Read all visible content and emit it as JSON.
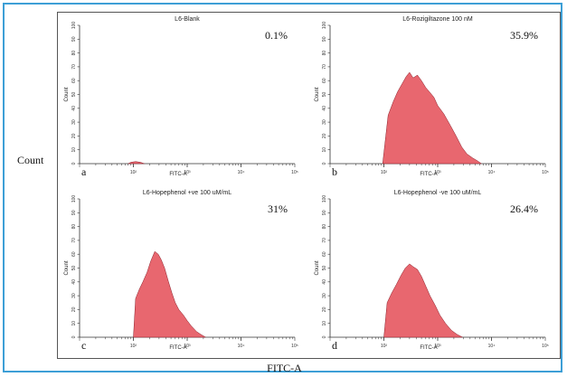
{
  "figure": {
    "y_label": "Count",
    "x_label": "FITC-A"
  },
  "chart_data": [
    {
      "type": "area",
      "panel_letter": "a",
      "title": "L6-Blank",
      "percent": "0.1%",
      "xlabel": "FITC-A",
      "ylabel": "Count",
      "xscale": "log",
      "xlim": [
        10,
        100000
      ],
      "ylim": [
        0,
        100
      ],
      "yticks": [
        0,
        10,
        20,
        30,
        40,
        50,
        60,
        70,
        80,
        90,
        100
      ],
      "xticks": [
        {
          "v": 100,
          "label": "10²"
        },
        {
          "v": 1000,
          "label": "10³"
        },
        {
          "v": 10000,
          "label": "10⁴"
        },
        {
          "v": 100000,
          "label": "10⁵"
        }
      ],
      "color": "#e8676f",
      "x": [
        80,
        90,
        110,
        135,
        160
      ],
      "y": [
        0,
        1,
        1.5,
        1,
        0
      ]
    },
    {
      "type": "area",
      "panel_letter": "b",
      "title": "L6-Rozigiltazone 100 nM",
      "percent": "35.9%",
      "xlabel": "FITC-A",
      "ylabel": "Count",
      "xscale": "log",
      "xlim": [
        10,
        100000
      ],
      "ylim": [
        0,
        100
      ],
      "yticks": [
        0,
        10,
        20,
        30,
        40,
        50,
        60,
        70,
        80,
        90,
        100
      ],
      "xticks": [
        {
          "v": 100,
          "label": "10²"
        },
        {
          "v": 1000,
          "label": "10³"
        },
        {
          "v": 10000,
          "label": "10⁴"
        },
        {
          "v": 100000,
          "label": "10⁵"
        }
      ],
      "color": "#e8676f",
      "x": [
        95,
        120,
        150,
        180,
        220,
        260,
        300,
        350,
        420,
        500,
        600,
        700,
        850,
        1000,
        1300,
        1700,
        2200,
        2800,
        3500,
        4500,
        5500,
        6500
      ],
      "y": [
        0,
        35,
        45,
        52,
        58,
        63,
        66,
        62,
        64,
        60,
        55,
        52,
        48,
        42,
        36,
        28,
        20,
        12,
        7,
        4,
        2,
        0
      ]
    },
    {
      "type": "area",
      "panel_letter": "c",
      "title": "L6-Hopephenol +ve 100 uM/mL",
      "percent": "31%",
      "xlabel": "FITC-A",
      "ylabel": "Count",
      "xscale": "log",
      "xlim": [
        10,
        100000
      ],
      "ylim": [
        0,
        100
      ],
      "yticks": [
        0,
        10,
        20,
        30,
        40,
        50,
        60,
        70,
        80,
        90,
        100
      ],
      "xticks": [
        {
          "v": 100,
          "label": "10²"
        },
        {
          "v": 1000,
          "label": "10³"
        },
        {
          "v": 10000,
          "label": "10⁴"
        },
        {
          "v": 100000,
          "label": "10⁵"
        }
      ],
      "color": "#e8676f",
      "x": [
        100,
        110,
        130,
        150,
        180,
        210,
        250,
        290,
        330,
        380,
        450,
        520,
        600,
        700,
        850,
        1000,
        1200,
        1500,
        1800,
        2200
      ],
      "y": [
        0,
        28,
        35,
        40,
        47,
        55,
        62,
        60,
        56,
        50,
        40,
        32,
        25,
        20,
        16,
        12,
        8,
        4,
        2,
        0
      ]
    },
    {
      "type": "area",
      "panel_letter": "d",
      "title": "L6-Hopephenol -ve 100 uM/mL",
      "percent": "26.4%",
      "xlabel": "FITC-A",
      "ylabel": "Count",
      "xscale": "log",
      "xlim": [
        10,
        100000
      ],
      "ylim": [
        0,
        100
      ],
      "yticks": [
        0,
        10,
        20,
        30,
        40,
        50,
        60,
        70,
        80,
        90,
        100
      ],
      "xticks": [
        {
          "v": 100,
          "label": "10²"
        },
        {
          "v": 1000,
          "label": "10³"
        },
        {
          "v": 10000,
          "label": "10⁴"
        },
        {
          "v": 100000,
          "label": "10⁵"
        }
      ],
      "color": "#e8676f",
      "x": [
        100,
        115,
        140,
        170,
        210,
        250,
        300,
        350,
        420,
        500,
        600,
        720,
        900,
        1100,
        1400,
        1800,
        2300,
        2900
      ],
      "y": [
        0,
        25,
        32,
        38,
        45,
        50,
        53,
        51,
        49,
        44,
        37,
        30,
        23,
        16,
        10,
        5,
        2,
        0
      ]
    }
  ]
}
